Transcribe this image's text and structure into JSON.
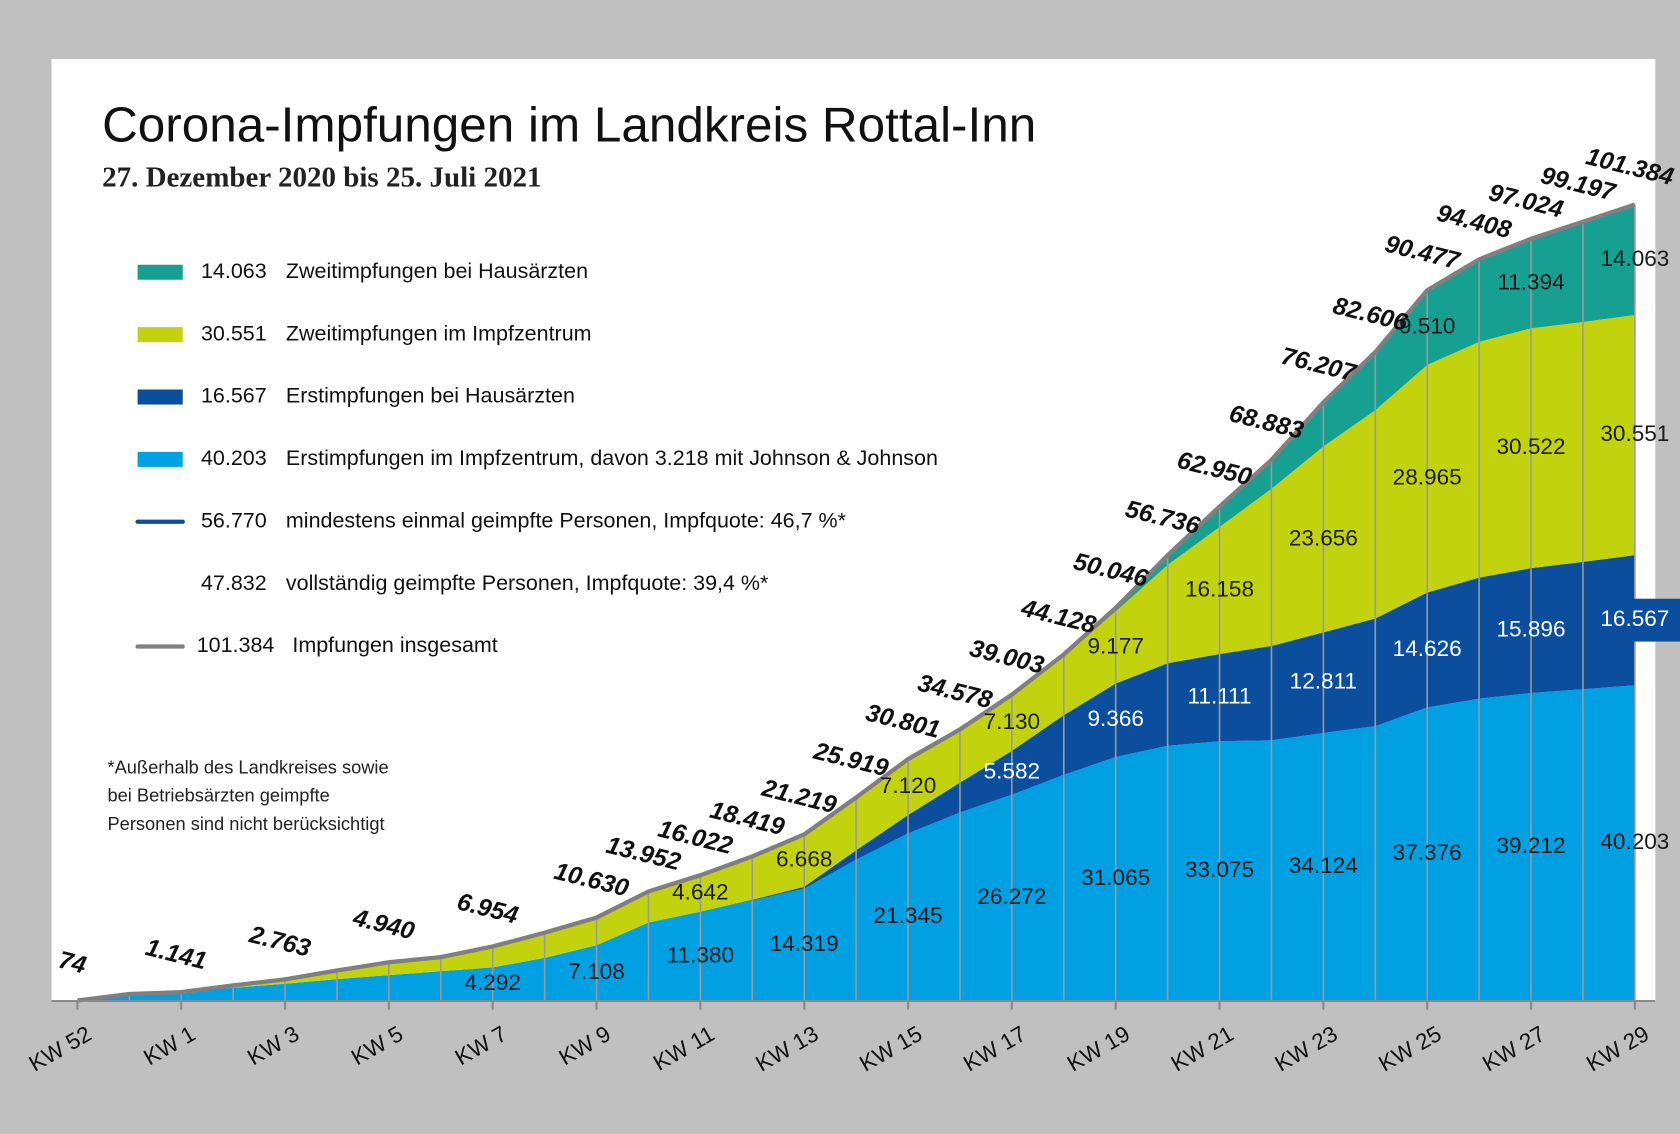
{
  "chart_data": {
    "type": "stacked_area",
    "title": "Corona-Impfungen im Landkreis Rottal-Inn",
    "subtitle": "27. Dezember 2020 bis 25. Juli 2021",
    "categories": [
      "KW 52",
      null,
      "KW 1",
      null,
      "KW 3",
      null,
      "KW 5",
      null,
      "KW 7",
      null,
      "KW 9",
      null,
      "KW 11",
      null,
      "KW 13",
      null,
      "KW 15",
      null,
      "KW 17",
      null,
      "KW 19",
      null,
      "KW 21",
      null,
      "KW 23",
      null,
      "KW 25",
      null,
      "KW 27",
      null,
      "KW 29"
    ],
    "ylim": [
      0,
      100000
    ],
    "series": [
      {
        "name": "Erstimpfungen im Impfzentrum, davon 3.218 mit Johnson & Johnson",
        "legend_value": "40.203",
        "color": "#00a0e3",
        "label_color": "#1a1a1a",
        "values": [
          74,
          900,
          1141,
          1700,
          2200,
          2800,
          3300,
          3800,
          4292,
          5500,
          7108,
          10000,
          11380,
          12800,
          14319,
          18000,
          21345,
          24000,
          26272,
          28800,
          31065,
          32500,
          33075,
          33200,
          34124,
          35000,
          37376,
          38500,
          39212,
          39700,
          40203
        ],
        "value_labels": [
          null,
          null,
          null,
          null,
          null,
          null,
          null,
          null,
          "4.292",
          null,
          "7.108",
          null,
          "11.380",
          null,
          "14.319",
          null,
          "21.345",
          null,
          "26.272",
          null,
          "31.065",
          null,
          "33.075",
          null,
          "34.124",
          null,
          "37.376",
          null,
          "39.212",
          null,
          "40.203"
        ]
      },
      {
        "name": "Erstimpfungen bei Hausärzten",
        "legend_value": "16.567",
        "color": "#0b4e9e",
        "label_color": "#ffffff",
        "values": [
          0,
          0,
          0,
          0,
          0,
          0,
          0,
          0,
          0,
          0,
          0,
          0,
          0,
          100,
          232,
          1200,
          2336,
          3800,
          5582,
          7600,
          9366,
          10500,
          11111,
          12000,
          12811,
          13700,
          14626,
          15400,
          15896,
          16200,
          16567
        ],
        "value_labels": [
          null,
          null,
          null,
          null,
          null,
          null,
          null,
          null,
          null,
          null,
          null,
          null,
          null,
          null,
          null,
          null,
          null,
          null,
          "5.582",
          null,
          "9.366",
          null,
          "11.111",
          null,
          "12.811",
          null,
          "14.626",
          null,
          "15.896",
          null,
          "16.567"
        ]
      },
      {
        "name": "Zweitimpfungen im Impfzentrum",
        "legend_value": "30.551",
        "color": "#c2d30e",
        "label_color": "#1a1a1a",
        "values": [
          0,
          0,
          0,
          300,
          563,
          1100,
          1640,
          1800,
          2662,
          3200,
          3522,
          3952,
          4642,
          5519,
          6668,
          6719,
          7120,
          6778,
          7130,
          7700,
          9177,
          12500,
          16158,
          20000,
          23656,
          26500,
          28965,
          30000,
          30522,
          30530,
          30551
        ],
        "value_labels": [
          null,
          null,
          null,
          null,
          null,
          null,
          null,
          null,
          null,
          null,
          null,
          null,
          "4.642",
          null,
          "6.668",
          null,
          "7.120",
          null,
          "7.130",
          null,
          "9.177",
          null,
          "16.158",
          null,
          "23.656",
          null,
          "28.965",
          null,
          "30.522",
          null,
          "30.551"
        ]
      },
      {
        "name": "Zweitimpfungen bei Hausärzten",
        "legend_value": "14.063",
        "color": "#16a091",
        "label_color": "#1a1a1a",
        "values": [
          0,
          0,
          0,
          0,
          0,
          0,
          0,
          0,
          0,
          0,
          0,
          0,
          0,
          0,
          0,
          0,
          0,
          0,
          19,
          28,
          438,
          1236,
          2606,
          3683,
          5616,
          7406,
          9510,
          10508,
          11394,
          12767,
          14063
        ],
        "value_labels": [
          null,
          null,
          null,
          null,
          null,
          null,
          null,
          null,
          null,
          null,
          null,
          null,
          null,
          null,
          null,
          null,
          null,
          null,
          null,
          null,
          null,
          null,
          null,
          null,
          null,
          null,
          "9.510",
          null,
          "11.394",
          null,
          "14.063"
        ]
      }
    ],
    "total": {
      "name": "Impfungen insgesamt",
      "legend_value": "101.384",
      "color": "#7f7f7f",
      "values": [
        74,
        900,
        1141,
        2000,
        2763,
        3900,
        4940,
        5600,
        6954,
        8700,
        10630,
        13952,
        16022,
        18419,
        21219,
        25919,
        30801,
        34578,
        39003,
        44128,
        50046,
        56736,
        62950,
        68883,
        76207,
        82606,
        90477,
        94408,
        97024,
        99197,
        101384
      ],
      "value_labels": [
        "74",
        null,
        "1.141",
        null,
        "2.763",
        null,
        "4.940",
        null,
        "6.954",
        null,
        "10.630",
        "13.952",
        "16.022",
        "18.419",
        "21.219",
        "25.919",
        "30.801",
        "34.578",
        "39.003",
        "44.128",
        "50.046",
        "56.736",
        "62.950",
        "68.883",
        "76.207",
        "82.606",
        "90.477",
        "94.408",
        "97.024",
        "99.197",
        "101.384"
      ]
    },
    "notes": [
      {
        "value": "56.770",
        "text": "mindestens einmal geimpfte Personen, Impfquote: 46,7 %*",
        "color": "#0b4e9e"
      },
      {
        "value": "47.832",
        "text": "vollständig geimpfte Personen, Impfquote: 39,4 %*",
        "color": null
      }
    ],
    "footnote": [
      "*Außerhalb des Landkreises sowie",
      "bei Betriebsärzten geimpfte",
      "Personen sind nicht berücksichtigt"
    ]
  }
}
